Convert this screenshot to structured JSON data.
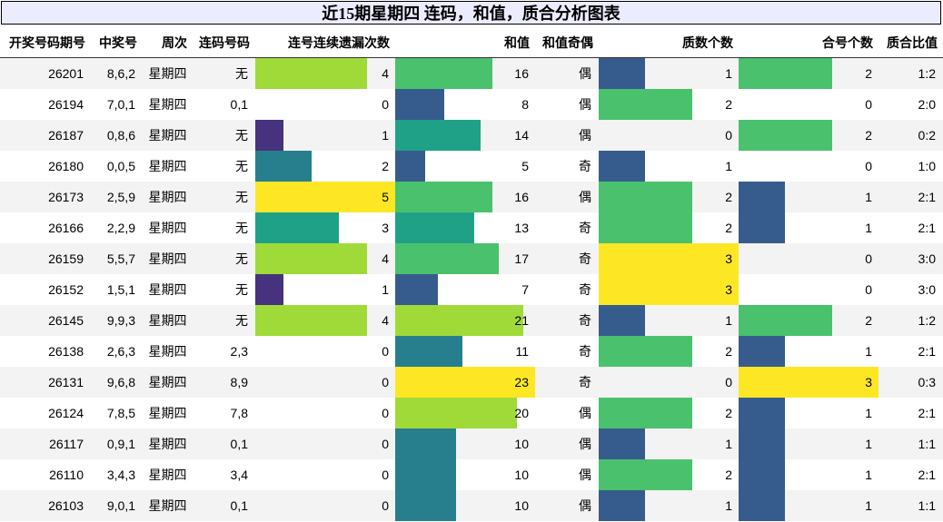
{
  "title": "近15期星期四 连码，和值，质合分析图表",
  "headers": [
    "开奖号码期号",
    "中奖号",
    "周次",
    "连码号码",
    "连号连续遗漏次数",
    "和值",
    "和值奇偶",
    "质数个数",
    "合号个数",
    "质合比值"
  ],
  "palette": [
    "#440154",
    "#46327e",
    "#365c8d",
    "#277f8e",
    "#1fa187",
    "#4ac16d",
    "#a0da39",
    "#fde725"
  ],
  "rows": [
    {
      "issue": "26201",
      "number": "8,6,2",
      "weekday": "星期四",
      "consecutive": "无",
      "miss": 4,
      "sum": 16,
      "parity": "偶",
      "prime": 1,
      "composite": 2,
      "ratio": "1:2"
    },
    {
      "issue": "26194",
      "number": "7,0,1",
      "weekday": "星期四",
      "consecutive": "0,1",
      "miss": 0,
      "sum": 8,
      "parity": "偶",
      "prime": 2,
      "composite": 0,
      "ratio": "2:0"
    },
    {
      "issue": "26187",
      "number": "0,8,6",
      "weekday": "星期四",
      "consecutive": "无",
      "miss": 1,
      "sum": 14,
      "parity": "偶",
      "prime": 0,
      "composite": 2,
      "ratio": "0:2"
    },
    {
      "issue": "26180",
      "number": "0,0,5",
      "weekday": "星期四",
      "consecutive": "无",
      "miss": 2,
      "sum": 5,
      "parity": "奇",
      "prime": 1,
      "composite": 0,
      "ratio": "1:0"
    },
    {
      "issue": "26173",
      "number": "2,5,9",
      "weekday": "星期四",
      "consecutive": "无",
      "miss": 5,
      "sum": 16,
      "parity": "偶",
      "prime": 2,
      "composite": 1,
      "ratio": "2:1"
    },
    {
      "issue": "26166",
      "number": "2,2,9",
      "weekday": "星期四",
      "consecutive": "无",
      "miss": 3,
      "sum": 13,
      "parity": "奇",
      "prime": 2,
      "composite": 1,
      "ratio": "2:1"
    },
    {
      "issue": "26159",
      "number": "5,5,7",
      "weekday": "星期四",
      "consecutive": "无",
      "miss": 4,
      "sum": 17,
      "parity": "奇",
      "prime": 3,
      "composite": 0,
      "ratio": "3:0"
    },
    {
      "issue": "26152",
      "number": "1,5,1",
      "weekday": "星期四",
      "consecutive": "无",
      "miss": 1,
      "sum": 7,
      "parity": "奇",
      "prime": 3,
      "composite": 0,
      "ratio": "3:0"
    },
    {
      "issue": "26145",
      "number": "9,9,3",
      "weekday": "星期四",
      "consecutive": "无",
      "miss": 4,
      "sum": 21,
      "parity": "奇",
      "prime": 1,
      "composite": 2,
      "ratio": "1:2"
    },
    {
      "issue": "26138",
      "number": "2,6,3",
      "weekday": "星期四",
      "consecutive": "2,3",
      "miss": 0,
      "sum": 11,
      "parity": "奇",
      "prime": 2,
      "composite": 1,
      "ratio": "2:1"
    },
    {
      "issue": "26131",
      "number": "9,6,8",
      "weekday": "星期四",
      "consecutive": "8,9",
      "miss": 0,
      "sum": 23,
      "parity": "奇",
      "prime": 0,
      "composite": 3,
      "ratio": "0:3"
    },
    {
      "issue": "26124",
      "number": "7,8,5",
      "weekday": "星期四",
      "consecutive": "7,8",
      "miss": 0,
      "sum": 20,
      "parity": "偶",
      "prime": 2,
      "composite": 1,
      "ratio": "2:1"
    },
    {
      "issue": "26117",
      "number": "0,9,1",
      "weekday": "星期四",
      "consecutive": "0,1",
      "miss": 0,
      "sum": 10,
      "parity": "偶",
      "prime": 1,
      "composite": 1,
      "ratio": "1:1"
    },
    {
      "issue": "26110",
      "number": "3,4,3",
      "weekday": "星期四",
      "consecutive": "3,4",
      "miss": 0,
      "sum": 10,
      "parity": "偶",
      "prime": 2,
      "composite": 1,
      "ratio": "2:1"
    },
    {
      "issue": "26103",
      "number": "9,0,1",
      "weekday": "星期四",
      "consecutive": "0,1",
      "miss": 0,
      "sum": 10,
      "parity": "偶",
      "prime": 1,
      "composite": 1,
      "ratio": "1:1"
    }
  ]
}
